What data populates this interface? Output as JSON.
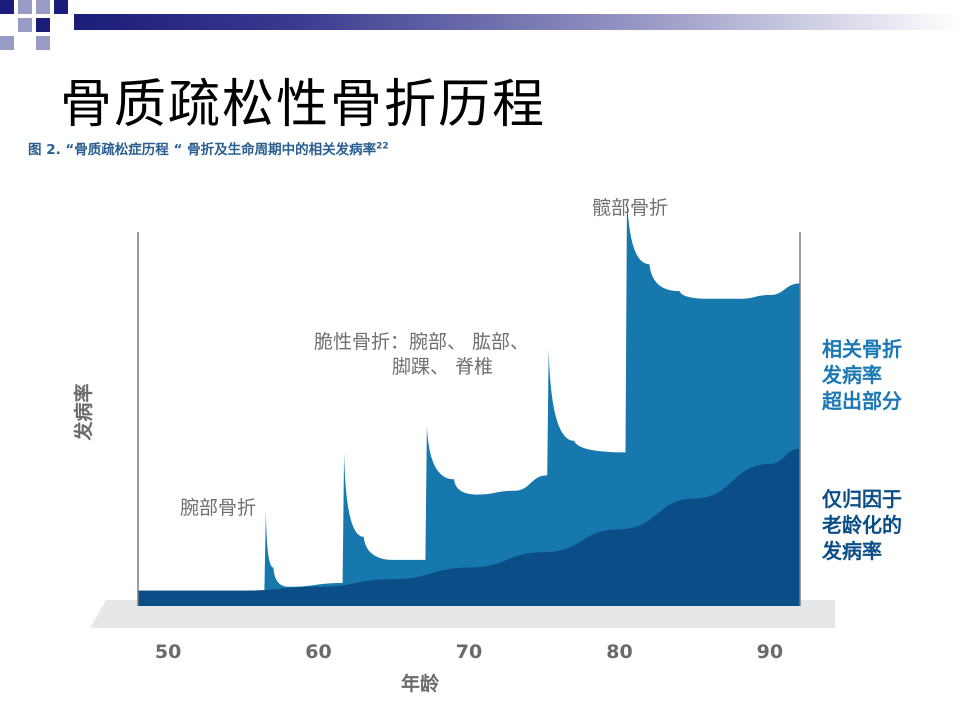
{
  "slide": {
    "title": "骨质疏松性骨折历程",
    "caption": "图 2. “骨质疏松症历程 “ 骨折及生命周期中的相关发病率",
    "caption_ref": "22"
  },
  "colors": {
    "baseline_dark": "#0b4d87",
    "fracture_light": "#1678ad",
    "grey_text": "#707070",
    "label_light_blue": "#1a78b4",
    "label_dark_blue": "#0b4d87",
    "deco_navy": "#1c1c7a"
  },
  "chart_data": {
    "type": "area",
    "title": "",
    "xlabel": "年龄",
    "ylabel": "发病率",
    "xticks": [
      50,
      60,
      70,
      80,
      90
    ],
    "xlim": [
      48,
      92
    ],
    "ylim": [
      0,
      100
    ],
    "grid": false,
    "series": [
      {
        "name": "仅归因于老龄化的发病率",
        "x": [
          48,
          55,
          60,
          65,
          70,
          75,
          80,
          85,
          90,
          92
        ],
        "y": [
          4,
          4,
          5,
          7,
          10,
          14,
          20,
          28,
          37,
          41
        ]
      },
      {
        "name": "相关骨折发病率超出部分",
        "x": [
          48,
          56.4,
          56.5,
          57.0,
          58,
          61.6,
          61.7,
          63,
          65,
          67.1,
          67.2,
          69,
          70.5,
          73,
          75.2,
          75.3,
          77,
          80.4,
          80.5,
          82,
          84,
          86,
          88,
          90,
          92
        ],
        "y": [
          4,
          4,
          25,
          10,
          5,
          6,
          40,
          18,
          12,
          12,
          47,
          33,
          29,
          30,
          34,
          67,
          43,
          40,
          107,
          89,
          82,
          80,
          80,
          81,
          84
        ]
      }
    ],
    "annotations": [
      {
        "text": "腕部骨折"
      },
      {
        "text": "脆性骨折：腕部、 肱部、"
      },
      {
        "text": "脚踝、 脊椎"
      },
      {
        "text": "髋部骨折"
      }
    ],
    "legend": [
      {
        "lines": [
          "相关骨折",
          "发病率",
          "超出部分"
        ]
      },
      {
        "lines": [
          "仅归因于",
          "老龄化的",
          "发病率"
        ]
      }
    ]
  }
}
